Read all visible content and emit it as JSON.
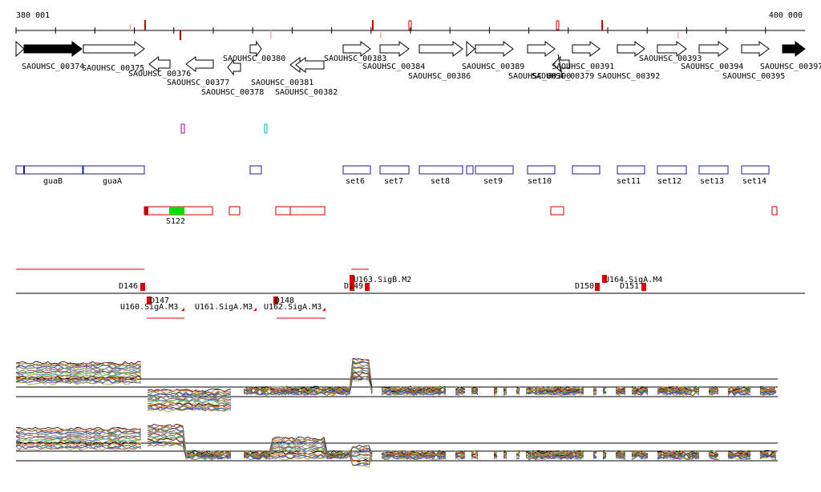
{
  "ruler": {
    "start_label": "380 001",
    "end_label": "400 000",
    "start": 380001,
    "end": 400000
  },
  "colors": {
    "axis": "#000000",
    "gene_outline": "#000000",
    "gene_fill": "#ffffff",
    "gene_dark": "#000000",
    "operon_outline": "#1a1aa6",
    "segment_outline": "#cc0000",
    "segment_highlight": "#00dd00",
    "marker": "#e00000",
    "purple": "#b000b0",
    "cyan": "#00bbbb"
  },
  "genes_row1": [
    {
      "label": "SAOUHSC_00374",
      "dark": true
    },
    {
      "label": "SAOUHSC_00375"
    },
    {
      "label": "SAOUHSC_00376"
    },
    {
      "label": "SAOUHSC_00377"
    },
    {
      "label": "SAOUHSC_00378"
    },
    {
      "label": "SAOUHSC_00380"
    },
    {
      "label": "SAOUHSC_00381"
    },
    {
      "label": "SAOUHSC_00382"
    },
    {
      "label": "SAOUHSC_00383"
    },
    {
      "label": "SAOUHSC_00384"
    },
    {
      "label": "SAOUHSC_00386"
    },
    {
      "label": "SAOUHSC_00389"
    },
    {
      "label": "SAOUHSC_00390"
    },
    {
      "label": "SAOUHSC_00379"
    },
    {
      "label": "SAOUHSC_00391"
    },
    {
      "label": "SAOUHSC_00392"
    },
    {
      "label": "SAOUHSC_00393"
    },
    {
      "label": "SAOUHSC_00394"
    },
    {
      "label": "SAOUHSC_00395"
    },
    {
      "label": "SAOUHSC_00397",
      "dark": true
    }
  ],
  "operons": [
    {
      "label": "guaB"
    },
    {
      "label": "guaA"
    },
    {
      "label": "set6"
    },
    {
      "label": "set7"
    },
    {
      "label": "set8"
    },
    {
      "label": "set9"
    },
    {
      "label": "set10"
    },
    {
      "label": "set11"
    },
    {
      "label": "set12"
    },
    {
      "label": "set13"
    },
    {
      "label": "set14"
    }
  ],
  "segments": [
    {
      "label": "S122"
    }
  ],
  "features": [
    {
      "label": "D146"
    },
    {
      "label": "D147"
    },
    {
      "label": "U160.SigA.M3"
    },
    {
      "label": "U161.SigA.M3"
    },
    {
      "label": "U162.SigA.M3"
    },
    {
      "label": "D148"
    },
    {
      "label": "D149"
    },
    {
      "label": "U163.SigB.M2"
    },
    {
      "label": "D150"
    },
    {
      "label": "U164.SigA.M4"
    },
    {
      "label": "D151"
    }
  ],
  "expression_tracks": [
    {
      "name": "track-1"
    },
    {
      "name": "track-2"
    }
  ]
}
